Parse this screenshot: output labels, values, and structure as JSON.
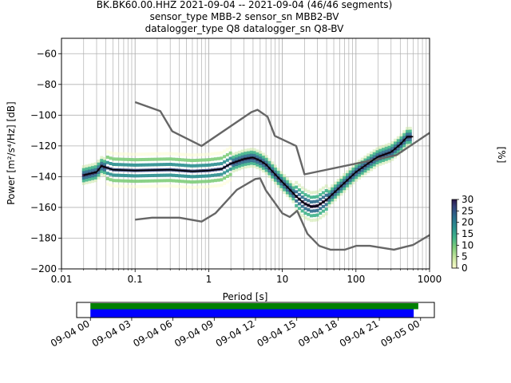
{
  "chart_data": [
    {
      "type": "heatmap",
      "title_lines": [
        "BK.BK60.00.HHZ   2021-09-04 -- 2021-09-04  (46/46 segments)",
        "sensor_type MBB-2 sensor_sn MBB2-BV",
        "datalogger_type Q8 datalogger_sn Q8-BV"
      ],
      "xlabel": "Period [s]",
      "ylabel": "Power [m²/s⁴/Hz] [dB]",
      "xscale": "log",
      "xlim": [
        0.01,
        1000
      ],
      "ylim": [
        -200,
        -50
      ],
      "x_ticks": [
        {
          "value": 0.01,
          "label": "0.01"
        },
        {
          "value": 0.1,
          "label": "0.1"
        },
        {
          "value": 1,
          "label": "1"
        },
        {
          "value": 10,
          "label": "10"
        },
        {
          "value": 100,
          "label": "100"
        },
        {
          "value": 1000,
          "label": "1000"
        }
      ],
      "y_ticks": [
        {
          "value": -60,
          "label": "−60"
        },
        {
          "value": -80,
          "label": "−80"
        },
        {
          "value": -100,
          "label": "−100"
        },
        {
          "value": -120,
          "label": "−120"
        },
        {
          "value": -140,
          "label": "−140"
        },
        {
          "value": -160,
          "label": "−160"
        },
        {
          "value": -180,
          "label": "−180"
        },
        {
          "value": -200,
          "label": "−200"
        }
      ],
      "grid": true,
      "series": [
        {
          "role": "noise-model-high",
          "color": "#666666",
          "points": [
            [
              0.1,
              -91.5
            ],
            [
              0.22,
              -97.4
            ],
            [
              0.32,
              -110.5
            ],
            [
              0.8,
              -120
            ],
            [
              3.8,
              -98.0
            ],
            [
              4.6,
              -96.5
            ],
            [
              6.3,
              -101.0
            ],
            [
              7.9,
              -113.5
            ],
            [
              15.4,
              -120.0
            ],
            [
              20,
              -138.5
            ],
            [
              354.8,
              -126.0
            ],
            [
              1000,
              -111.5
            ]
          ]
        },
        {
          "role": "noise-model-low",
          "color": "#666666",
          "points": [
            [
              0.1,
              -168.0
            ],
            [
              0.17,
              -166.7
            ],
            [
              0.4,
              -166.7
            ],
            [
              0.8,
              -169.2
            ],
            [
              1.24,
              -163.7
            ],
            [
              2.4,
              -148.6
            ],
            [
              4.3,
              -141.5
            ],
            [
              5.0,
              -141.1
            ],
            [
              6.0,
              -149.0
            ],
            [
              10.0,
              -163.8
            ],
            [
              12.6,
              -166.2
            ],
            [
              15.9,
              -162.2
            ],
            [
              21.9,
              -177.1
            ],
            [
              31.6,
              -185.0
            ],
            [
              45.0,
              -187.5
            ],
            [
              70.8,
              -187.5
            ],
            [
              101,
              -185.0
            ],
            [
              154,
              -185.0
            ],
            [
              328,
              -187.5
            ],
            [
              600,
              -184.4
            ],
            [
              1000,
              -178.0
            ]
          ]
        },
        {
          "role": "mode",
          "color": "#000000",
          "points": [
            [
              0.02,
              -139.0
            ],
            [
              0.03,
              -137.0
            ],
            [
              0.035,
              -133.0
            ],
            [
              0.05,
              -135.5
            ],
            [
              0.1,
              -136.0
            ],
            [
              0.3,
              -135.5
            ],
            [
              0.6,
              -136.5
            ],
            [
              1.0,
              -136.0
            ],
            [
              1.5,
              -135.0
            ],
            [
              2.0,
              -131.5
            ],
            [
              3.0,
              -128.5
            ],
            [
              4.0,
              -127.5
            ],
            [
              5.0,
              -129.5
            ],
            [
              6.0,
              -132.0
            ],
            [
              8.0,
              -138.5
            ],
            [
              10,
              -143.5
            ],
            [
              13,
              -149.0
            ],
            [
              16,
              -153.5
            ],
            [
              20,
              -157.5
            ],
            [
              25,
              -159.5
            ],
            [
              30,
              -159.0
            ],
            [
              40,
              -155.0
            ],
            [
              60,
              -147.0
            ],
            [
              100,
              -137.0
            ],
            [
              150,
              -131.0
            ],
            [
              200,
              -127.0
            ],
            [
              300,
              -124.0
            ],
            [
              400,
              -119.0
            ],
            [
              500,
              -114.0
            ],
            [
              600,
              -114.0
            ]
          ]
        }
      ],
      "colorbar": {
        "label": "[%]",
        "min": 0,
        "max": 30,
        "ticks": [
          {
            "value": 0,
            "label": "0"
          },
          {
            "value": 5,
            "label": "5"
          },
          {
            "value": 10,
            "label": "10"
          },
          {
            "value": 15,
            "label": "15"
          },
          {
            "value": 20,
            "label": "20"
          },
          {
            "value": 25,
            "label": "25"
          },
          {
            "value": 30,
            "label": "30"
          }
        ]
      }
    },
    {
      "type": "bar",
      "role": "data-coverage",
      "xlim": [
        "2021-09-03T23:00",
        "2021-09-05T01:00"
      ],
      "bars": [
        {
          "role": "data-available",
          "color": "#008000",
          "start": "2021-09-04T00:00",
          "end": "2021-09-04T23:50"
        },
        {
          "role": "psd-segments",
          "color": "#0000ff",
          "start": "2021-09-04T00:00",
          "end": "2021-09-04T23:30"
        }
      ],
      "x_ticks": [
        {
          "value": "2021-09-04T00:00",
          "label": "09-04 00"
        },
        {
          "value": "2021-09-04T03:00",
          "label": "09-04 03"
        },
        {
          "value": "2021-09-04T06:00",
          "label": "09-04 06"
        },
        {
          "value": "2021-09-04T09:00",
          "label": "09-04 09"
        },
        {
          "value": "2021-09-04T12:00",
          "label": "09-04 12"
        },
        {
          "value": "2021-09-04T15:00",
          "label": "09-04 15"
        },
        {
          "value": "2021-09-04T18:00",
          "label": "09-04 18"
        },
        {
          "value": "2021-09-04T21:00",
          "label": "09-04 21"
        },
        {
          "value": "2021-09-05T00:00",
          "label": "09-05 00"
        }
      ]
    }
  ]
}
